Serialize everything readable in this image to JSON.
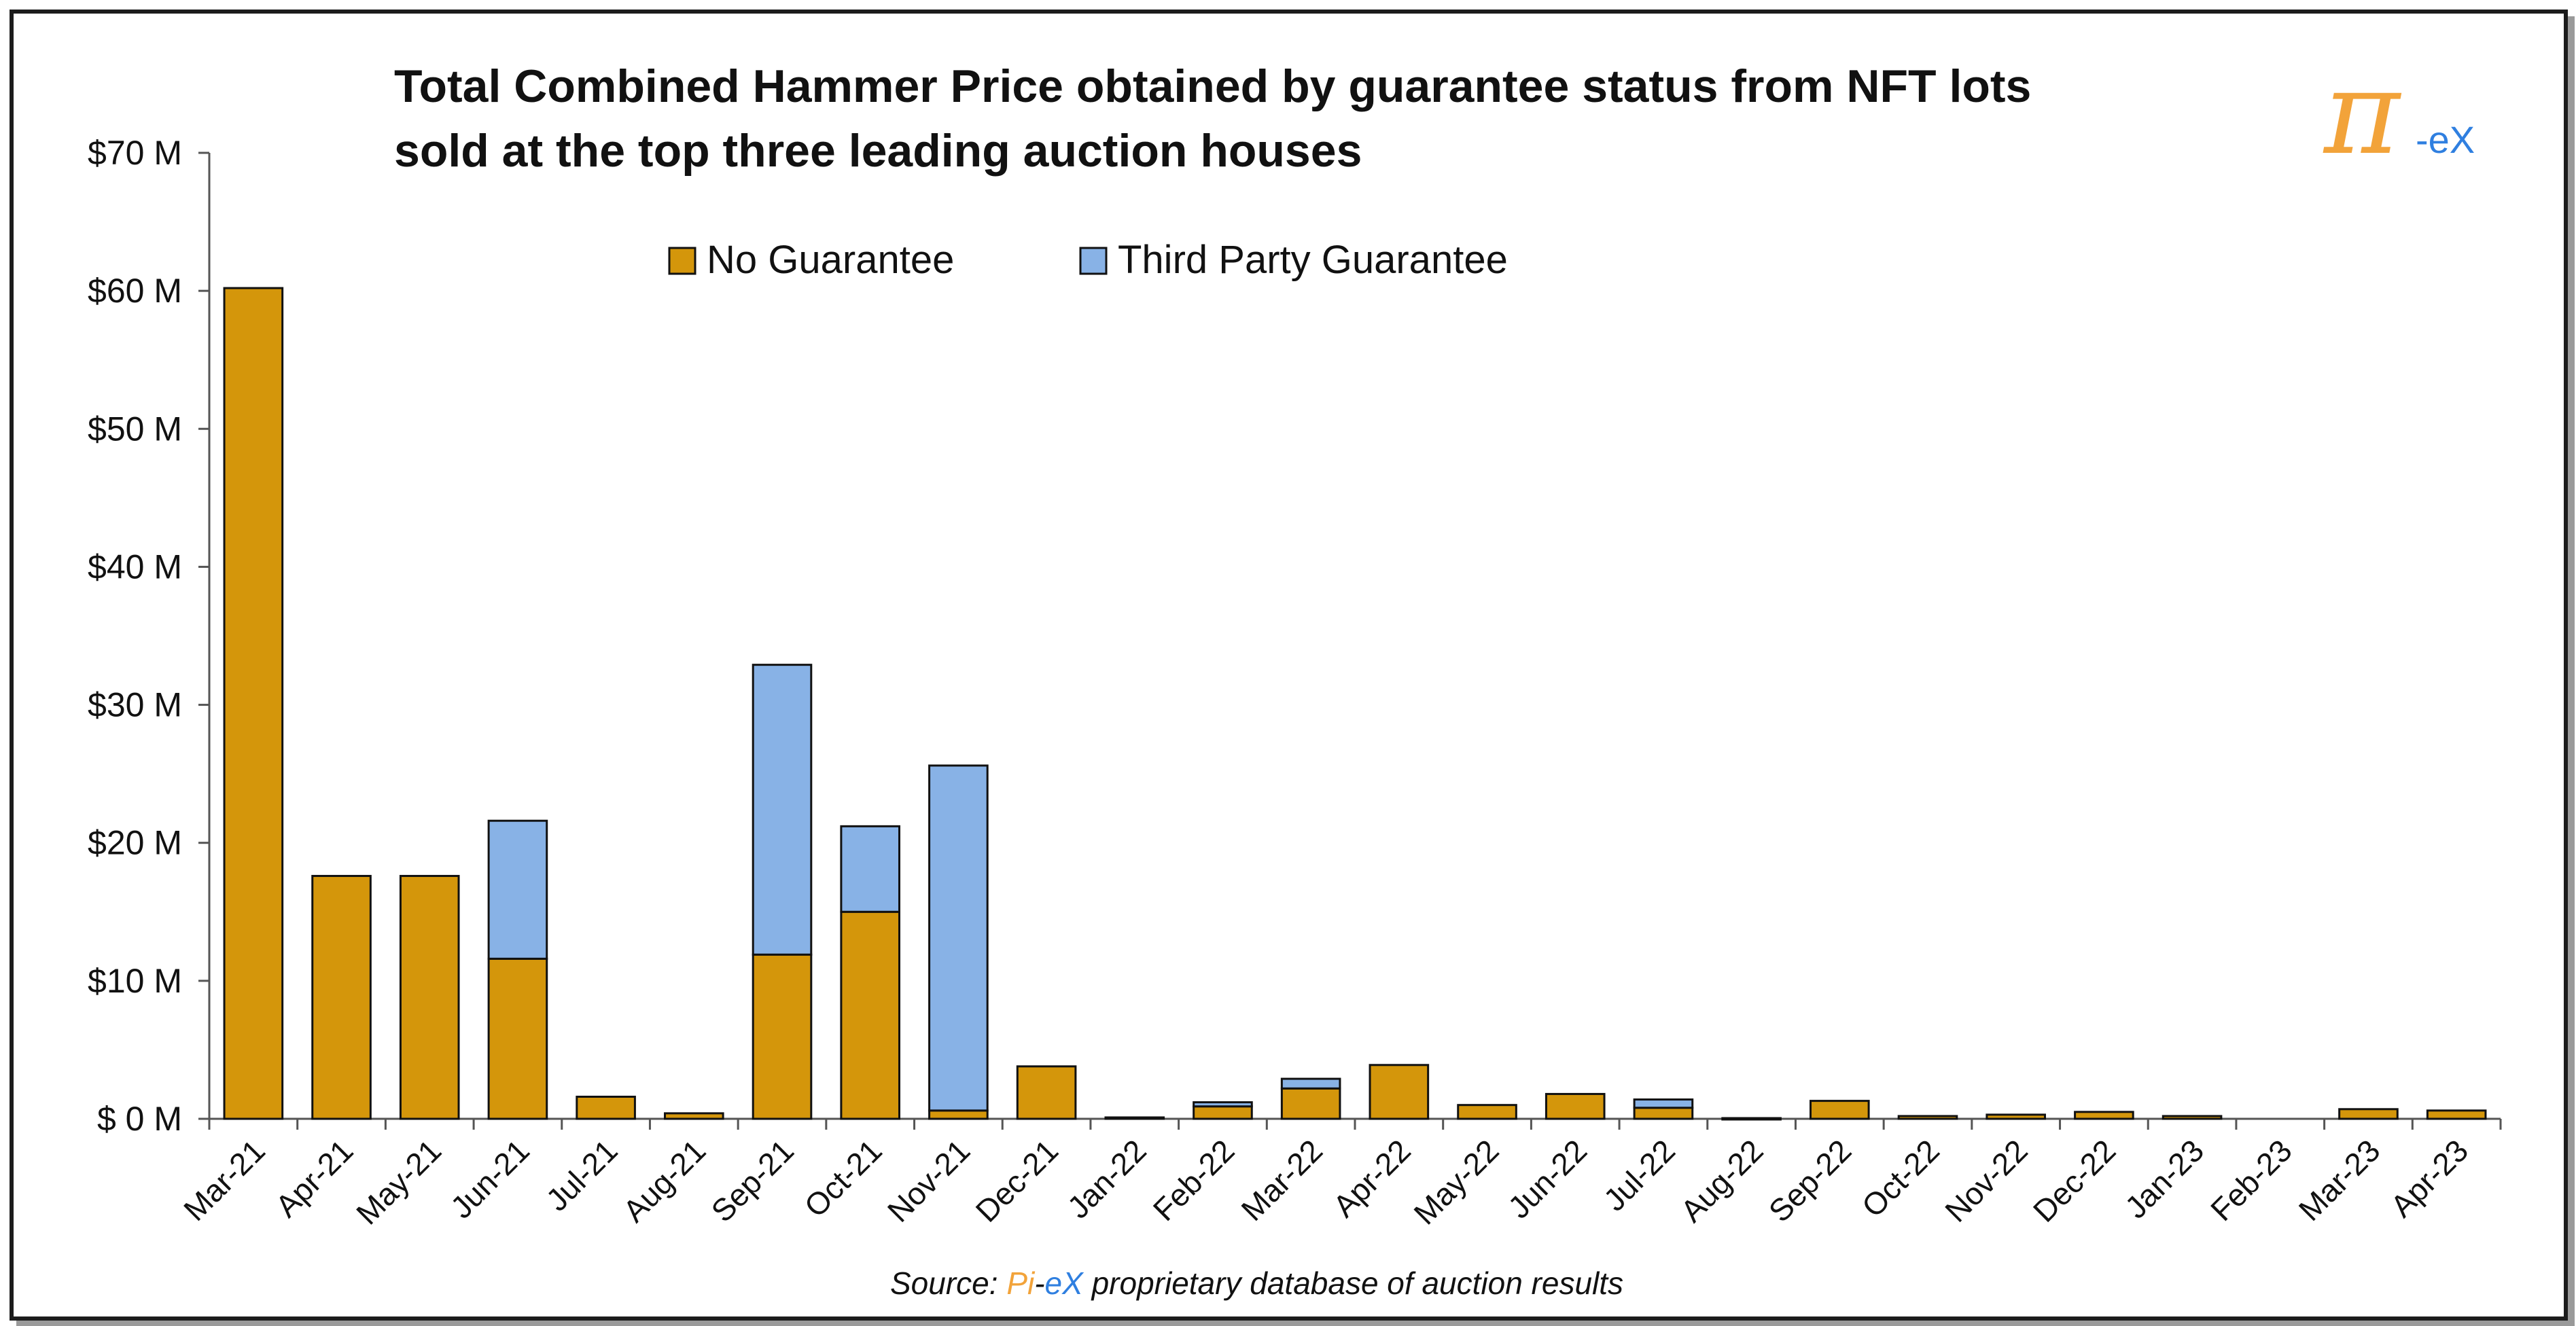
{
  "title_line1": "Total Combined Hammer Price obtained by guarantee status from NFT lots",
  "title_line2": "sold at the top three leading auction houses",
  "logo": {
    "symbol": "π",
    "text": "-eX"
  },
  "source": {
    "prefix": "Source: ",
    "brand1": "Pi",
    "dash": "-",
    "brand2": "eX",
    "suffix": " proprietary database of auction results"
  },
  "colors": {
    "no_guarantee": "#d4960b",
    "third_party": "#88b2e6",
    "pi": "#f2a33a",
    "ex": "#2f7fe0"
  },
  "chart_data": {
    "type": "bar",
    "stacked": true,
    "categories": [
      "Mar-21",
      "Apr-21",
      "May-21",
      "Jun-21",
      "Jul-21",
      "Aug-21",
      "Sep-21",
      "Oct-21",
      "Nov-21",
      "Dec-21",
      "Jan-22",
      "Feb-22",
      "Mar-22",
      "Apr-22",
      "May-22",
      "Jun-22",
      "Jul-22",
      "Aug-22",
      "Sep-22",
      "Oct-22",
      "Nov-22",
      "Dec-22",
      "Jan-23",
      "Feb-23",
      "Mar-23",
      "Apr-23"
    ],
    "series": [
      {
        "name": "No Guarantee",
        "values": [
          60.2,
          17.6,
          17.6,
          11.6,
          1.6,
          0.4,
          11.9,
          15.0,
          0.6,
          3.8,
          0.1,
          0.9,
          2.2,
          3.9,
          1.0,
          1.8,
          0.8,
          0.05,
          1.3,
          0.2,
          0.3,
          0.5,
          0.2,
          0.0,
          0.7,
          0.6
        ]
      },
      {
        "name": "Third Party Guarantee",
        "values": [
          0,
          0,
          0,
          10.0,
          0,
          0,
          21.0,
          6.2,
          25.0,
          0,
          0,
          0.3,
          0.7,
          0,
          0,
          0,
          0.6,
          0,
          0,
          0,
          0,
          0,
          0,
          0,
          0,
          0
        ]
      }
    ],
    "yticks": [
      "$ 0 M",
      "$10 M",
      "$20 M",
      "$30 M",
      "$40 M",
      "$50 M",
      "$60 M",
      "$70 M"
    ],
    "ylim": [
      0,
      70
    ],
    "grid": false,
    "legend_position": "top-center"
  }
}
